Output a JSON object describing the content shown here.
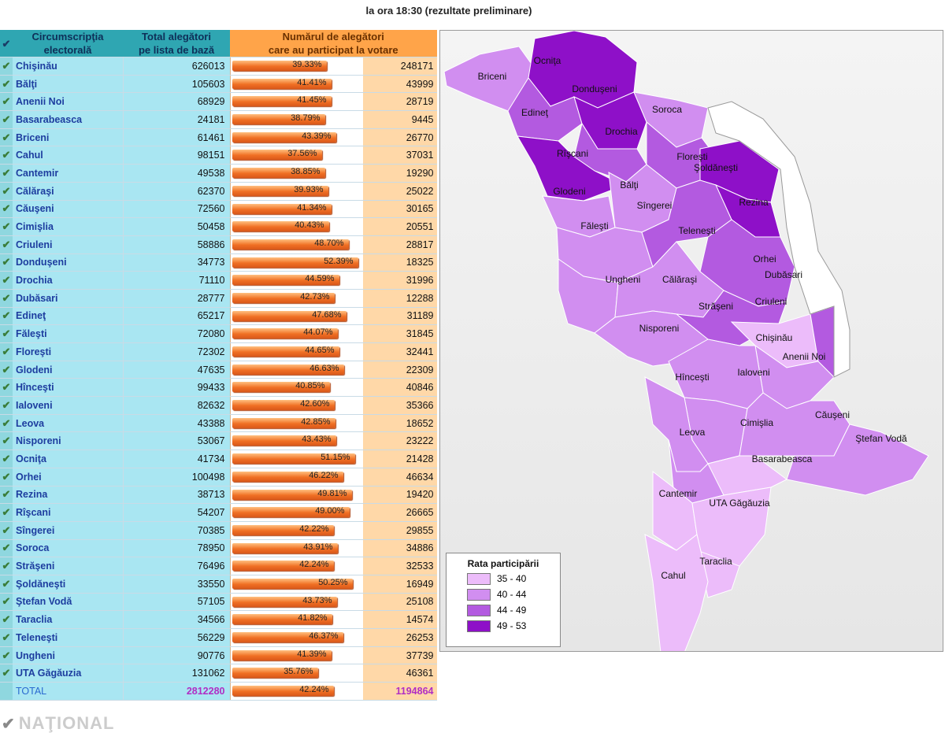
{
  "title": "la ora 18:30 (rezultate preliminare)",
  "headers": {
    "check": "✔",
    "district": [
      "Circumscripţia",
      "electorală"
    ],
    "total": [
      "Total alegători",
      "pe lista de bază"
    ],
    "voters": [
      "Numărul de alegători",
      "care au participat la votare"
    ]
  },
  "colors": {
    "bar": "#f07024",
    "legend": [
      "#ecbcfa",
      "#d18ef0",
      "#b35ae0",
      "#8e10c8"
    ]
  },
  "chart_data": {
    "type": "table",
    "rows": [
      {
        "name": "Chişinău",
        "total": "626013",
        "pct": "39.33%",
        "p": 39.33,
        "voters": "248171"
      },
      {
        "name": "Bălţi",
        "total": "105603",
        "pct": "41.41%",
        "p": 41.41,
        "voters": "43999"
      },
      {
        "name": "Anenii Noi",
        "total": "68929",
        "pct": "41.45%",
        "p": 41.45,
        "voters": "28719"
      },
      {
        "name": "Basarabeasca",
        "total": "24181",
        "pct": "38.79%",
        "p": 38.79,
        "voters": "9445"
      },
      {
        "name": "Briceni",
        "total": "61461",
        "pct": "43.39%",
        "p": 43.39,
        "voters": "26770"
      },
      {
        "name": "Cahul",
        "total": "98151",
        "pct": "37.56%",
        "p": 37.56,
        "voters": "37031"
      },
      {
        "name": "Cantemir",
        "total": "49538",
        "pct": "38.85%",
        "p": 38.85,
        "voters": "19290"
      },
      {
        "name": "Călăraşi",
        "total": "62370",
        "pct": "39.93%",
        "p": 39.93,
        "voters": "25022"
      },
      {
        "name": "Căuşeni",
        "total": "72560",
        "pct": "41.34%",
        "p": 41.34,
        "voters": "30165"
      },
      {
        "name": "Cimişlia",
        "total": "50458",
        "pct": "40.43%",
        "p": 40.43,
        "voters": "20551"
      },
      {
        "name": "Criuleni",
        "total": "58886",
        "pct": "48.70%",
        "p": 48.7,
        "voters": "28817"
      },
      {
        "name": "Donduşeni",
        "total": "34773",
        "pct": "52.39%",
        "p": 52.39,
        "voters": "18325"
      },
      {
        "name": "Drochia",
        "total": "71110",
        "pct": "44.59%",
        "p": 44.59,
        "voters": "31996"
      },
      {
        "name": "Dubăsari",
        "total": "28777",
        "pct": "42.73%",
        "p": 42.73,
        "voters": "12288"
      },
      {
        "name": "Edineţ",
        "total": "65217",
        "pct": "47.68%",
        "p": 47.68,
        "voters": "31189"
      },
      {
        "name": "Făleşti",
        "total": "72080",
        "pct": "44.07%",
        "p": 44.07,
        "voters": "31845"
      },
      {
        "name": "Floreşti",
        "total": "72302",
        "pct": "44.65%",
        "p": 44.65,
        "voters": "32441"
      },
      {
        "name": "Glodeni",
        "total": "47635",
        "pct": "46.63%",
        "p": 46.63,
        "voters": "22309"
      },
      {
        "name": "Hînceşti",
        "total": "99433",
        "pct": "40.85%",
        "p": 40.85,
        "voters": "40846"
      },
      {
        "name": "Ialoveni",
        "total": "82632",
        "pct": "42.60%",
        "p": 42.6,
        "voters": "35366"
      },
      {
        "name": "Leova",
        "total": "43388",
        "pct": "42.85%",
        "p": 42.85,
        "voters": "18652"
      },
      {
        "name": "Nisporeni",
        "total": "53067",
        "pct": "43.43%",
        "p": 43.43,
        "voters": "23222"
      },
      {
        "name": "Ocniţa",
        "total": "41734",
        "pct": "51.15%",
        "p": 51.15,
        "voters": "21428"
      },
      {
        "name": "Orhei",
        "total": "100498",
        "pct": "46.22%",
        "p": 46.22,
        "voters": "46634"
      },
      {
        "name": "Rezina",
        "total": "38713",
        "pct": "49.81%",
        "p": 49.81,
        "voters": "19420"
      },
      {
        "name": "Rîşcani",
        "total": "54207",
        "pct": "49.00%",
        "p": 49.0,
        "voters": "26665"
      },
      {
        "name": "Sîngerei",
        "total": "70385",
        "pct": "42.22%",
        "p": 42.22,
        "voters": "29855"
      },
      {
        "name": "Soroca",
        "total": "78950",
        "pct": "43.91%",
        "p": 43.91,
        "voters": "34886"
      },
      {
        "name": "Străşeni",
        "total": "76496",
        "pct": "42.24%",
        "p": 42.24,
        "voters": "32533"
      },
      {
        "name": "Şoldăneşti",
        "total": "33550",
        "pct": "50.25%",
        "p": 50.25,
        "voters": "16949"
      },
      {
        "name": "Ştefan Vodă",
        "total": "57105",
        "pct": "43.73%",
        "p": 43.73,
        "voters": "25108"
      },
      {
        "name": "Taraclia",
        "total": "34566",
        "pct": "41.82%",
        "p": 41.82,
        "voters": "14574"
      },
      {
        "name": "Teleneşti",
        "total": "56229",
        "pct": "46.37%",
        "p": 46.37,
        "voters": "26253"
      },
      {
        "name": "Ungheni",
        "total": "90776",
        "pct": "41.39%",
        "p": 41.39,
        "voters": "37739"
      },
      {
        "name": "UTA Găgăuzia",
        "total": "131062",
        "pct": "35.76%",
        "p": 35.76,
        "voters": "46361"
      }
    ],
    "total_row": {
      "name": "TOTAL",
      "total": "2812280",
      "pct": "42.24%",
      "p": 42.24,
      "voters": "1194864"
    }
  },
  "map": {
    "labels": [
      "Ocniţa",
      "Briceni",
      "Donduşeni",
      "Edineţ",
      "Soroca",
      "Drochia",
      "Rîşcani",
      "Floreşti",
      "Şoldăneşti",
      "Glodeni",
      "Bălţi",
      "Sîngerei",
      "Rezina",
      "Făleşti",
      "Teleneşti",
      "Orhei",
      "Dubăsari",
      "Ungheni",
      "Călăraşi",
      "Criuleni",
      "Străşeni",
      "Nisporeni",
      "Chişinău",
      "Anenii Noi",
      "Hînceşti",
      "Ialoveni",
      "Căuşeni",
      "Cimişlia",
      "Leova",
      "Ştefan Vodă",
      "Basarabeasca",
      "Cantemir",
      "UTA Găgăuzia",
      "Taraclia",
      "Cahul"
    ]
  },
  "legend": {
    "title": "Rata participării",
    "items": [
      "35 - 40",
      "40 - 44",
      "44 - 49",
      "49 - 53"
    ]
  },
  "logo": "NAŢIONAL"
}
